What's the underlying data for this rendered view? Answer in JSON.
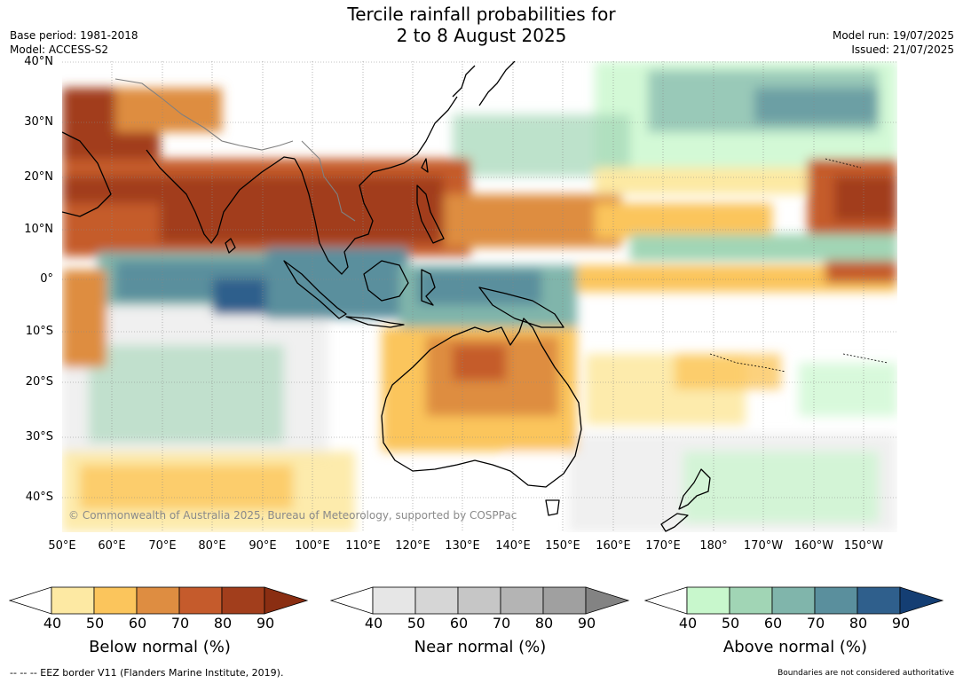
{
  "title_line1": "Tercile rainfall probabilities for",
  "title_line2": "2 to 8 August 2025",
  "meta_left": [
    "Base period: 1981-2018",
    "Model: ACCESS-S2"
  ],
  "meta_right": [
    "Model run: 19/07/2025",
    "Issued: 21/07/2025"
  ],
  "lat_labels": [
    "40°N",
    "30°N",
    "20°N",
    "10°N",
    "0°",
    "10°S",
    "20°S",
    "30°S",
    "40°S"
  ],
  "lon_labels": [
    "50°E",
    "60°E",
    "70°E",
    "80°E",
    "90°E",
    "100°E",
    "110°E",
    "120°E",
    "130°E",
    "140°E",
    "150°E",
    "160°E",
    "170°E",
    "180°",
    "170°W",
    "160°W",
    "150°W"
  ],
  "copyright": "© Commonwealth of Australia 2025, Bureau of Meteorology, supported by COSPPac",
  "colorbars": [
    {
      "label": "Below normal (%)",
      "ticks": [
        "40",
        "50",
        "60",
        "70",
        "80",
        "90"
      ],
      "colors": [
        "#ffffff",
        "#fde9a3",
        "#fbc55c",
        "#de8d41",
        "#c55b2c",
        "#a23e1c",
        "#8a2e12"
      ]
    },
    {
      "label": "Near normal (%)",
      "ticks": [
        "40",
        "50",
        "60",
        "70",
        "80",
        "90"
      ],
      "colors": [
        "#ffffff",
        "#e6e6e6",
        "#d6d6d6",
        "#c6c6c6",
        "#b4b4b4",
        "#a0a0a0",
        "#838383"
      ]
    },
    {
      "label": "Above normal (%)",
      "ticks": [
        "40",
        "50",
        "60",
        "70",
        "80",
        "90"
      ],
      "colors": [
        "#ffffff",
        "#c8f7cc",
        "#a1d5b5",
        "#80b5ab",
        "#5a8f9d",
        "#2f5f8c",
        "#143e73"
      ]
    }
  ],
  "footer_left": "--  --  -- EEZ border V11 (Flanders Marine Institute, 2019).",
  "footer_right": "Boundaries are not considered authoritative"
}
